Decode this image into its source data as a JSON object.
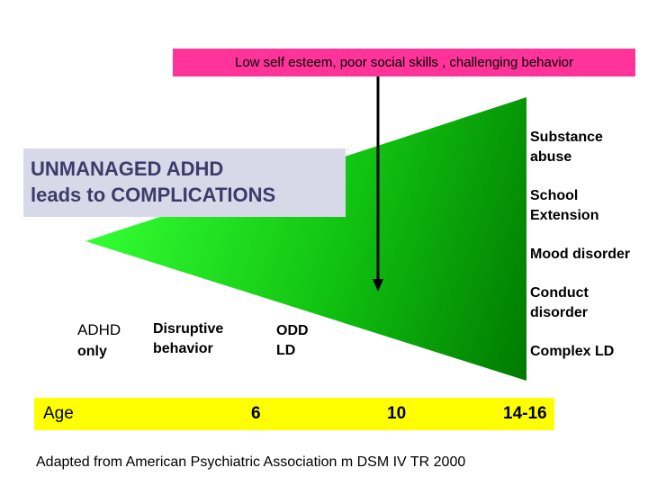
{
  "banner": {
    "text": "Low self esteem, poor social skills , challenging behavior"
  },
  "title": {
    "line1": "UNMANAGED ADHD",
    "line2": "leads to COMPLICATIONS"
  },
  "outcomes": {
    "substance_line1": "Substance",
    "substance_line2": "abuse",
    "school_line1": "School",
    "school_line2": "Extension",
    "mood": "Mood disorder",
    "conduct_line1": "Conduct",
    "conduct_line2": "disorder",
    "complex_ld": "Complex LD"
  },
  "stages": {
    "adhd_line1": "ADHD",
    "adhd_line2": "only",
    "disruptive_line1": "Disruptive",
    "disruptive_line2": "behavior",
    "odd_line1": "ODD",
    "odd_line2": "LD"
  },
  "age_axis": {
    "label": "Age",
    "ticks": [
      "6",
      "10",
      "14-16"
    ]
  },
  "source": "Adapted from American Psychiatric Association m DSM IV TR 2000",
  "colors": {
    "banner": "#ff3399",
    "title_box": "#d7d9e8",
    "title_text": "#3c3c6a",
    "wedge_light": "#33ff33",
    "wedge_dark": "#007f00",
    "age_bar": "#ffff00"
  }
}
